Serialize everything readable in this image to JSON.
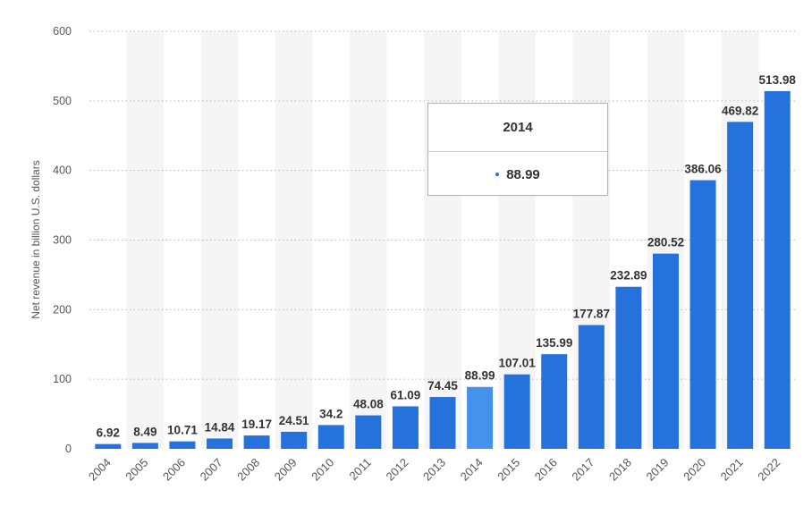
{
  "chart_data": {
    "type": "bar",
    "categories": [
      "2004",
      "2005",
      "2006",
      "2007",
      "2008",
      "2009",
      "2010",
      "2011",
      "2012",
      "2013",
      "2014",
      "2015",
      "2016",
      "2017",
      "2018",
      "2019",
      "2020",
      "2021",
      "2022"
    ],
    "values": [
      6.92,
      8.49,
      10.71,
      14.84,
      19.17,
      24.51,
      34.2,
      48.08,
      61.09,
      74.45,
      88.99,
      107.01,
      135.99,
      177.87,
      232.89,
      280.52,
      386.06,
      469.82,
      513.98
    ],
    "value_labels": [
      "6.92",
      "8.49",
      "10.71",
      "14.84",
      "19.17",
      "24.51",
      "34.2",
      "48.08",
      "61.09",
      "74.45",
      "88.99",
      "107.01",
      "135.99",
      "177.87",
      "232.89",
      "280.52",
      "386.06",
      "469.82",
      "513.98"
    ],
    "title": "",
    "xlabel": "",
    "ylabel": "Net revenue in billion U.S. dollars",
    "ylim": [
      0,
      600
    ],
    "yticks": [
      "0",
      "100",
      "200",
      "300",
      "400",
      "500",
      "600"
    ],
    "grid": true,
    "legend": "none",
    "highlighted_category": "2014",
    "colors": {
      "bar": "#2672dc",
      "highlight": "#4592ec"
    }
  },
  "tooltip": {
    "title": "2014",
    "value": "88.99",
    "dot_color": "#2672dc"
  }
}
